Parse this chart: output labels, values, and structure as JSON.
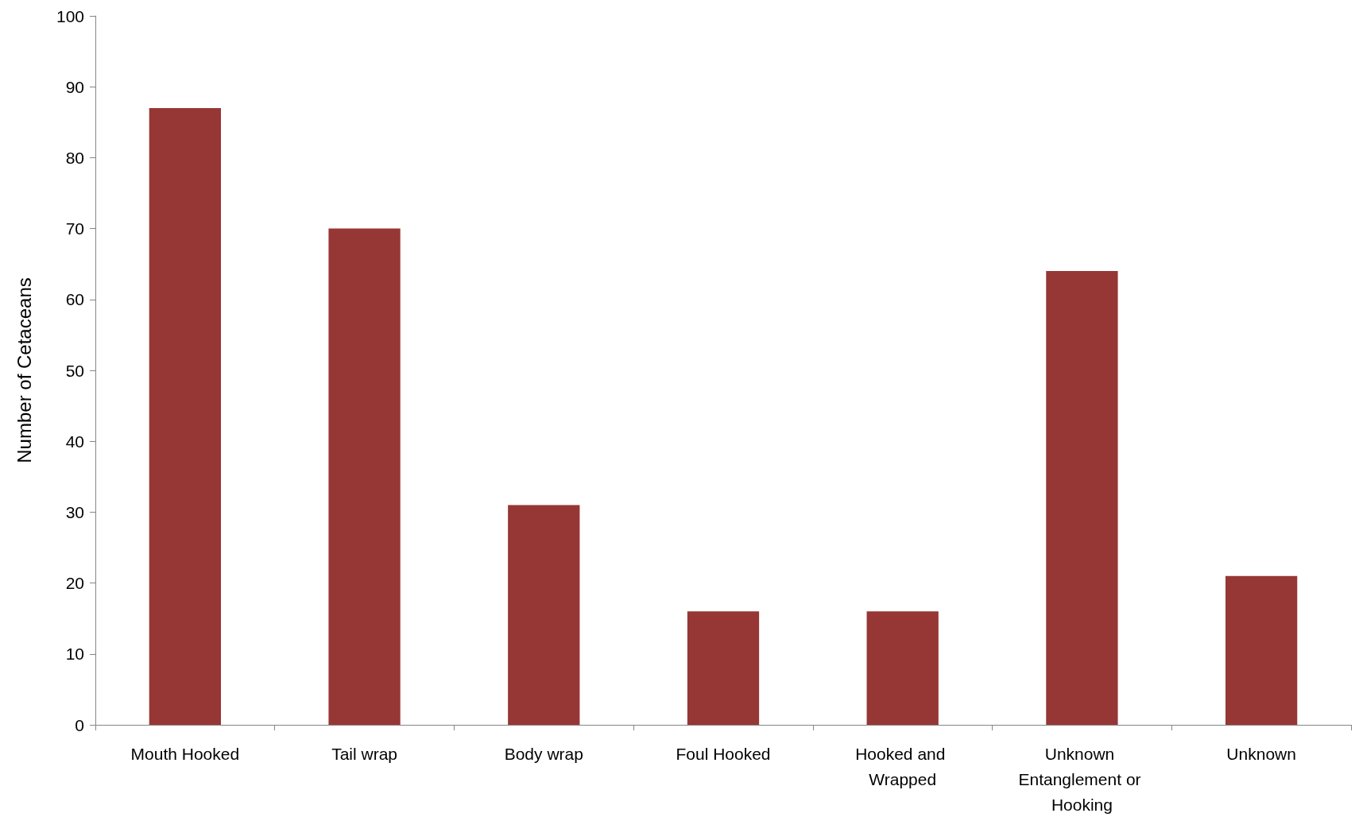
{
  "chart_data": {
    "type": "bar",
    "ylabel": "Number of Cetaceans",
    "categories": [
      "Mouth Hooked",
      "Tail wrap",
      "Body wrap",
      "Foul Hooked",
      "Hooked and Wrapped",
      "Unknown Entanglement or Hooking",
      "Unknown"
    ],
    "values": [
      87,
      70,
      31,
      16,
      16,
      64,
      21
    ],
    "color": "#963735",
    "ylim": [
      0,
      100
    ],
    "yticks": [
      0,
      10,
      20,
      30,
      40,
      50,
      60,
      70,
      80,
      90,
      100
    ],
    "grid": false
  }
}
